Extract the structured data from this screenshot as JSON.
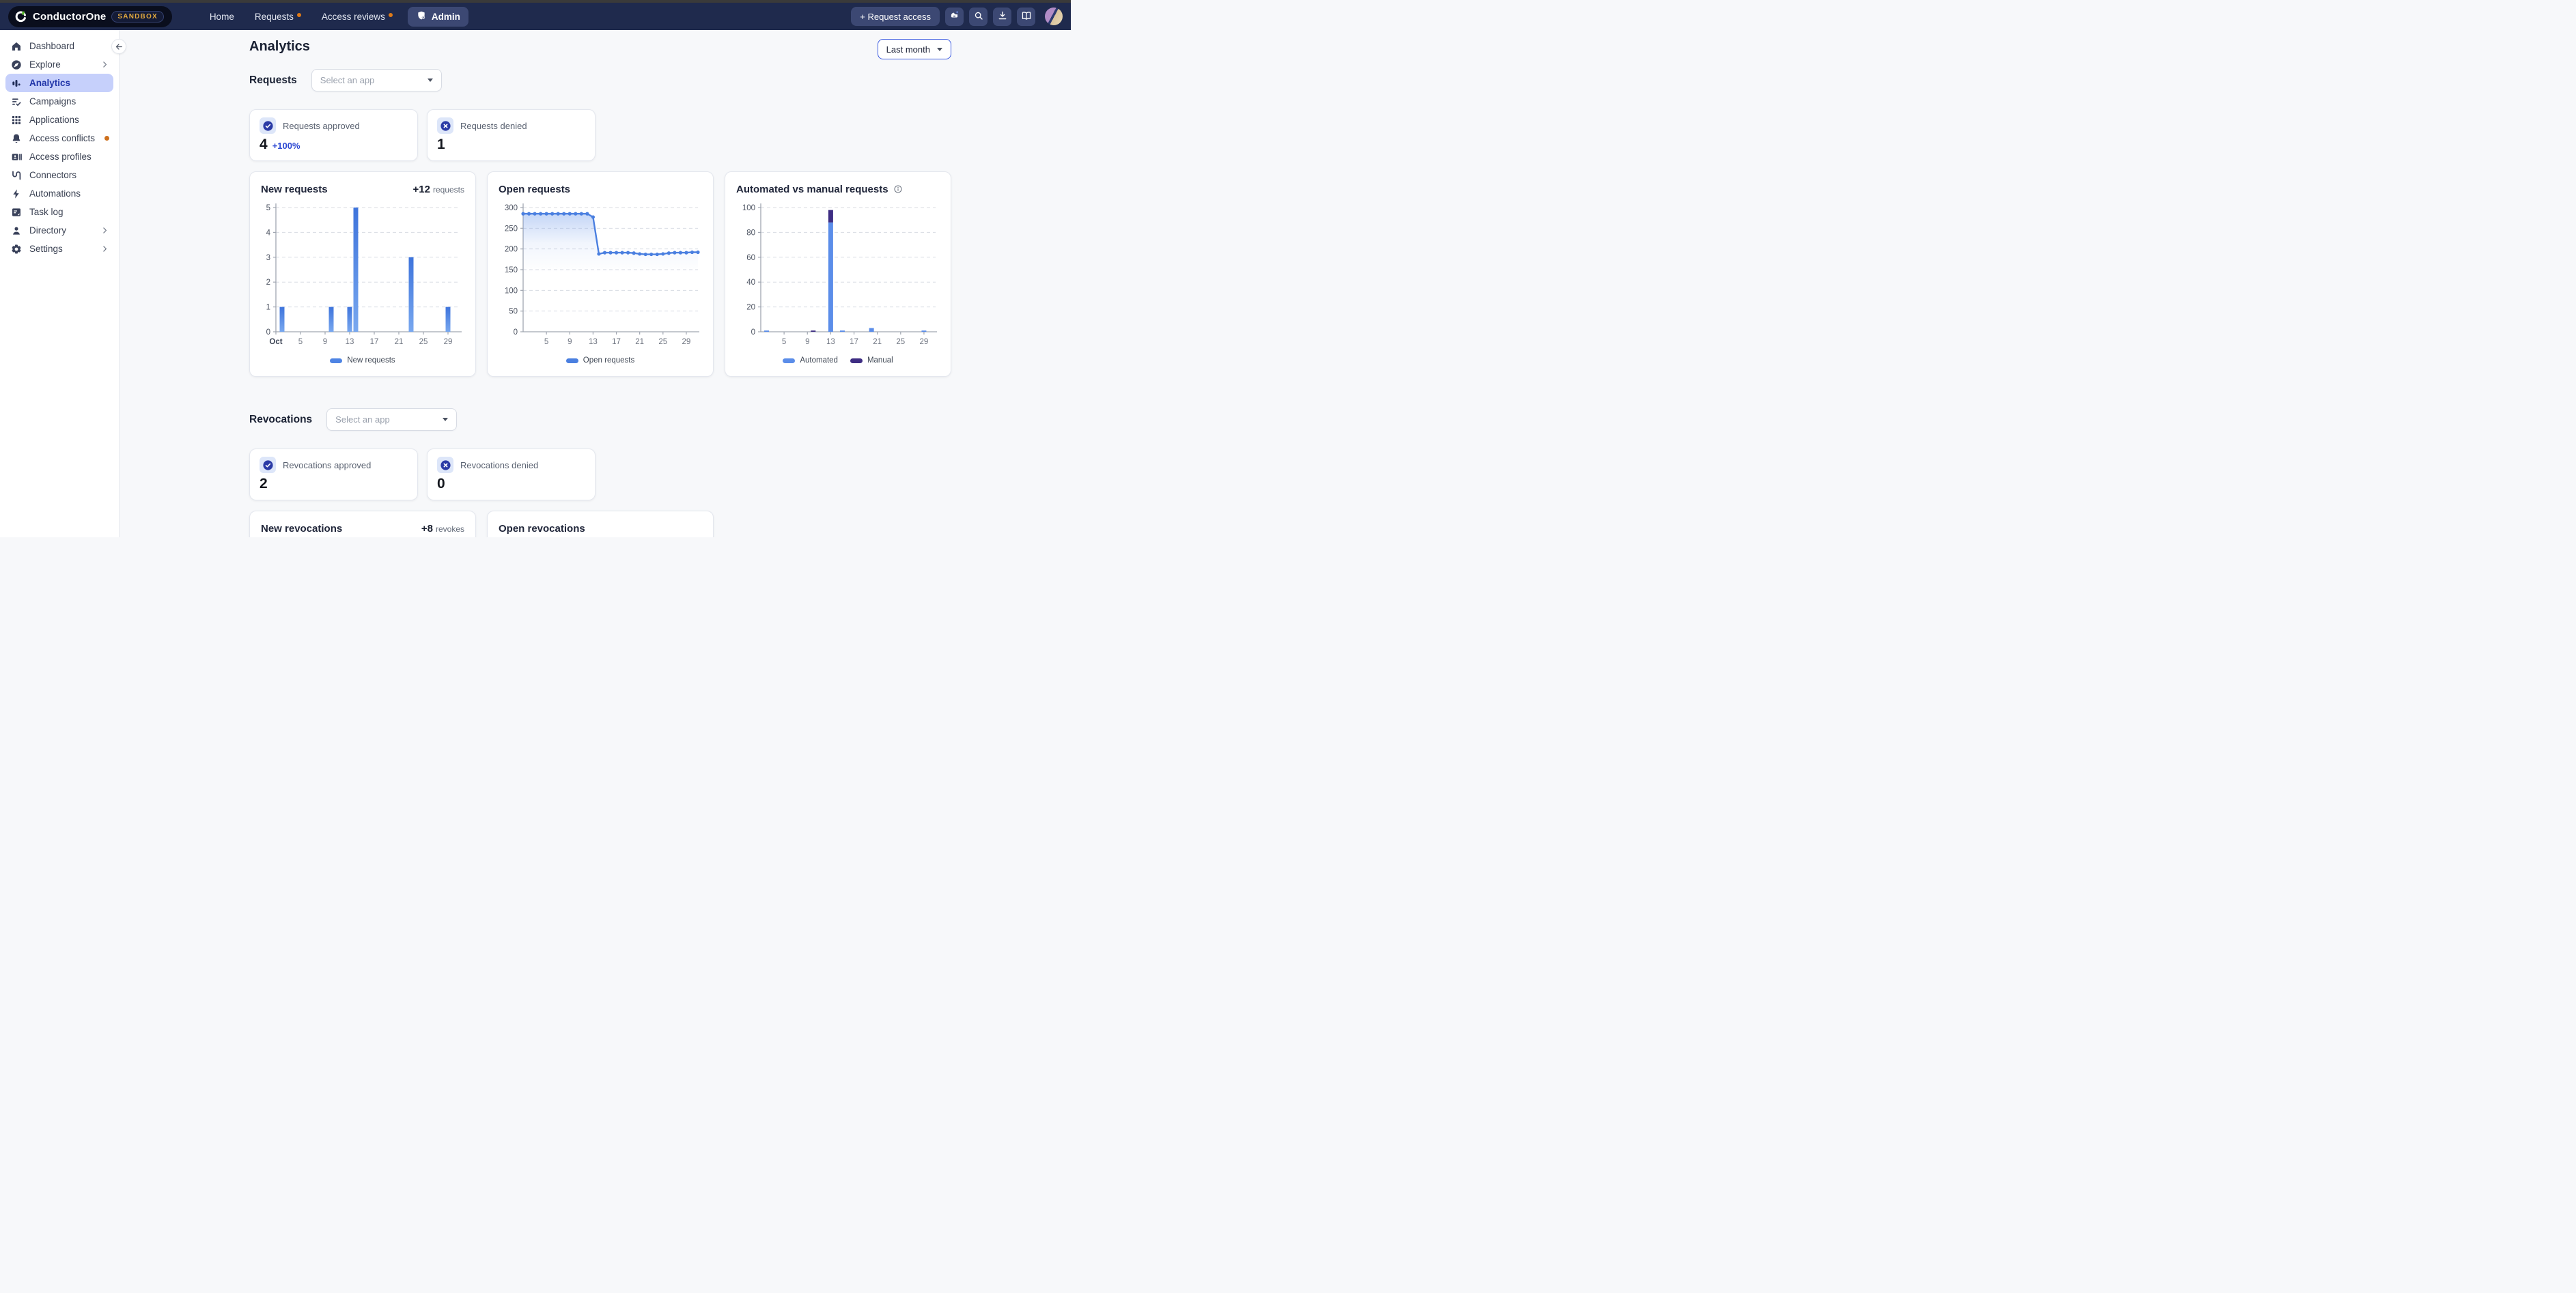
{
  "topbar": {
    "brand": "ConductorOne",
    "brand_badge": "SANDBOX",
    "nav_items": [
      {
        "label": "Home",
        "dot": false
      },
      {
        "label": "Requests",
        "dot": true
      },
      {
        "label": "Access reviews",
        "dot": true
      }
    ],
    "admin_button": "Admin",
    "request_access_button": "+ Request access",
    "icon_buttons": [
      "assistant",
      "search",
      "download",
      "docs"
    ]
  },
  "sidebar": {
    "items": [
      {
        "label": "Dashboard",
        "icon": "home-icon"
      },
      {
        "label": "Explore",
        "icon": "compass-icon",
        "chevron": true
      },
      {
        "label": "Analytics",
        "icon": "bar-chart-icon",
        "active": true
      },
      {
        "label": "Campaigns",
        "icon": "list-check-icon"
      },
      {
        "label": "Applications",
        "icon": "grid-icon"
      },
      {
        "label": "Access conflicts",
        "icon": "bell-icon",
        "dot": true
      },
      {
        "label": "Access profiles",
        "icon": "id-card-icon"
      },
      {
        "label": "Connectors",
        "icon": "connector-icon"
      },
      {
        "label": "Automations",
        "icon": "bolt-icon"
      },
      {
        "label": "Task log",
        "icon": "task-log-icon"
      },
      {
        "label": "Directory",
        "icon": "person-icon",
        "chevron": true
      },
      {
        "label": "Settings",
        "icon": "gear-icon",
        "chevron": true
      }
    ]
  },
  "main": {
    "title": "Analytics",
    "period_button": "Last month",
    "requests": {
      "label": "Requests",
      "app_select_placeholder": "Select an app",
      "stats": [
        {
          "label": "Requests approved",
          "value": "4",
          "delta": "+100%",
          "icon": "check-circle"
        },
        {
          "label": "Requests denied",
          "value": "1",
          "icon": "x-circle"
        }
      ]
    },
    "revocations": {
      "label": "Revocations",
      "app_select_placeholder": "Select an app",
      "stats": [
        {
          "label": "Revocations approved",
          "value": "2",
          "icon": "check-circle"
        },
        {
          "label": "Revocations denied",
          "value": "0",
          "icon": "x-circle"
        }
      ]
    }
  },
  "colors": {
    "navbar": "#1F2A4D",
    "active_item_bg": "#C6D0FB",
    "orange_dot": "#CE701D",
    "accent_blue": "#2D49D3",
    "bar_blue_top": "#3E74DC",
    "bar_blue_bottom": "#79A8EF",
    "line_blue": "#4A7FE0",
    "manual_purple": "#3E2D83"
  },
  "chart_data": [
    {
      "id": "new-requests",
      "type": "bar",
      "title": "New requests",
      "badge": {
        "value": "+12",
        "unit": "requests"
      },
      "x_unit": "day of October",
      "days": 31,
      "ymax": 5,
      "yticks": [
        0,
        1,
        2,
        3,
        4,
        5
      ],
      "xticks": [
        {
          "day": 1,
          "label": "Oct",
          "bold": true
        },
        {
          "day": 5,
          "label": "5"
        },
        {
          "day": 9,
          "label": "9"
        },
        {
          "day": 13,
          "label": "13"
        },
        {
          "day": 17,
          "label": "17"
        },
        {
          "day": 21,
          "label": "21"
        },
        {
          "day": 25,
          "label": "25"
        },
        {
          "day": 29,
          "label": "29"
        }
      ],
      "bars": [
        {
          "day": 2,
          "value": 1
        },
        {
          "day": 10,
          "value": 1
        },
        {
          "day": 13,
          "value": 1
        },
        {
          "day": 14,
          "value": 5
        },
        {
          "day": 23,
          "value": 3
        },
        {
          "day": 29,
          "value": 1
        }
      ],
      "legend": [
        {
          "label": "New requests",
          "color": "#4E84E4"
        }
      ]
    },
    {
      "id": "open-requests",
      "type": "line",
      "title": "Open requests",
      "x_unit": "day of October",
      "days": 31,
      "ymax": 300,
      "yticks": [
        0,
        50,
        100,
        150,
        200,
        250,
        300
      ],
      "xticks": [
        {
          "day": 5,
          "label": "5"
        },
        {
          "day": 9,
          "label": "9"
        },
        {
          "day": 13,
          "label": "13"
        },
        {
          "day": 17,
          "label": "17"
        },
        {
          "day": 21,
          "label": "21"
        },
        {
          "day": 25,
          "label": "25"
        },
        {
          "day": 29,
          "label": "29"
        }
      ],
      "start_day": 1,
      "values": [
        285,
        285,
        285,
        285,
        285,
        285,
        285,
        285,
        285,
        285,
        285,
        285,
        277,
        188,
        191,
        191,
        191,
        191,
        191,
        190,
        188,
        187,
        187,
        187,
        188,
        190,
        191,
        191,
        191,
        192,
        192
      ],
      "line_color": "#4A7FE0",
      "area_fill": true,
      "legend": [
        {
          "label": "Open requests",
          "color": "#4A7FE0"
        }
      ]
    },
    {
      "id": "automated-vs-manual",
      "type": "stacked-bar",
      "title": "Automated vs manual requests",
      "info_icon": true,
      "x_unit": "day of October",
      "days": 31,
      "ymax": 100,
      "yticks": [
        0,
        20,
        40,
        60,
        80,
        100
      ],
      "xticks": [
        {
          "day": 5,
          "label": "5"
        },
        {
          "day": 9,
          "label": "9"
        },
        {
          "day": 13,
          "label": "13"
        },
        {
          "day": 17,
          "label": "17"
        },
        {
          "day": 21,
          "label": "21"
        },
        {
          "day": 25,
          "label": "25"
        },
        {
          "day": 29,
          "label": "29"
        }
      ],
      "series": [
        {
          "name": "Automated",
          "color": "#5B8DE9",
          "bars": [
            {
              "day": 2,
              "value": 1
            },
            {
              "day": 13,
              "value": 88
            },
            {
              "day": 15,
              "value": 1
            },
            {
              "day": 20,
              "value": 3
            },
            {
              "day": 29,
              "value": 1
            }
          ]
        },
        {
          "name": "Manual",
          "color": "#3E2D83",
          "bars": [
            {
              "day": 10,
              "value": 1
            },
            {
              "day": 13,
              "value": 10
            }
          ]
        }
      ],
      "legend": [
        {
          "label": "Automated",
          "color": "#5B8DE9"
        },
        {
          "label": "Manual",
          "color": "#3E2D83"
        }
      ]
    },
    {
      "id": "new-revocations",
      "type": "bar",
      "title": "New revocations",
      "badge": {
        "value": "+8",
        "unit": "revokes"
      },
      "clipped": true,
      "bars": [],
      "yticks": [],
      "xticks": [],
      "legend": []
    },
    {
      "id": "open-revocations",
      "type": "line",
      "title": "Open revocations",
      "clipped": true,
      "values": [],
      "yticks": [],
      "xticks": [],
      "legend": []
    }
  ]
}
